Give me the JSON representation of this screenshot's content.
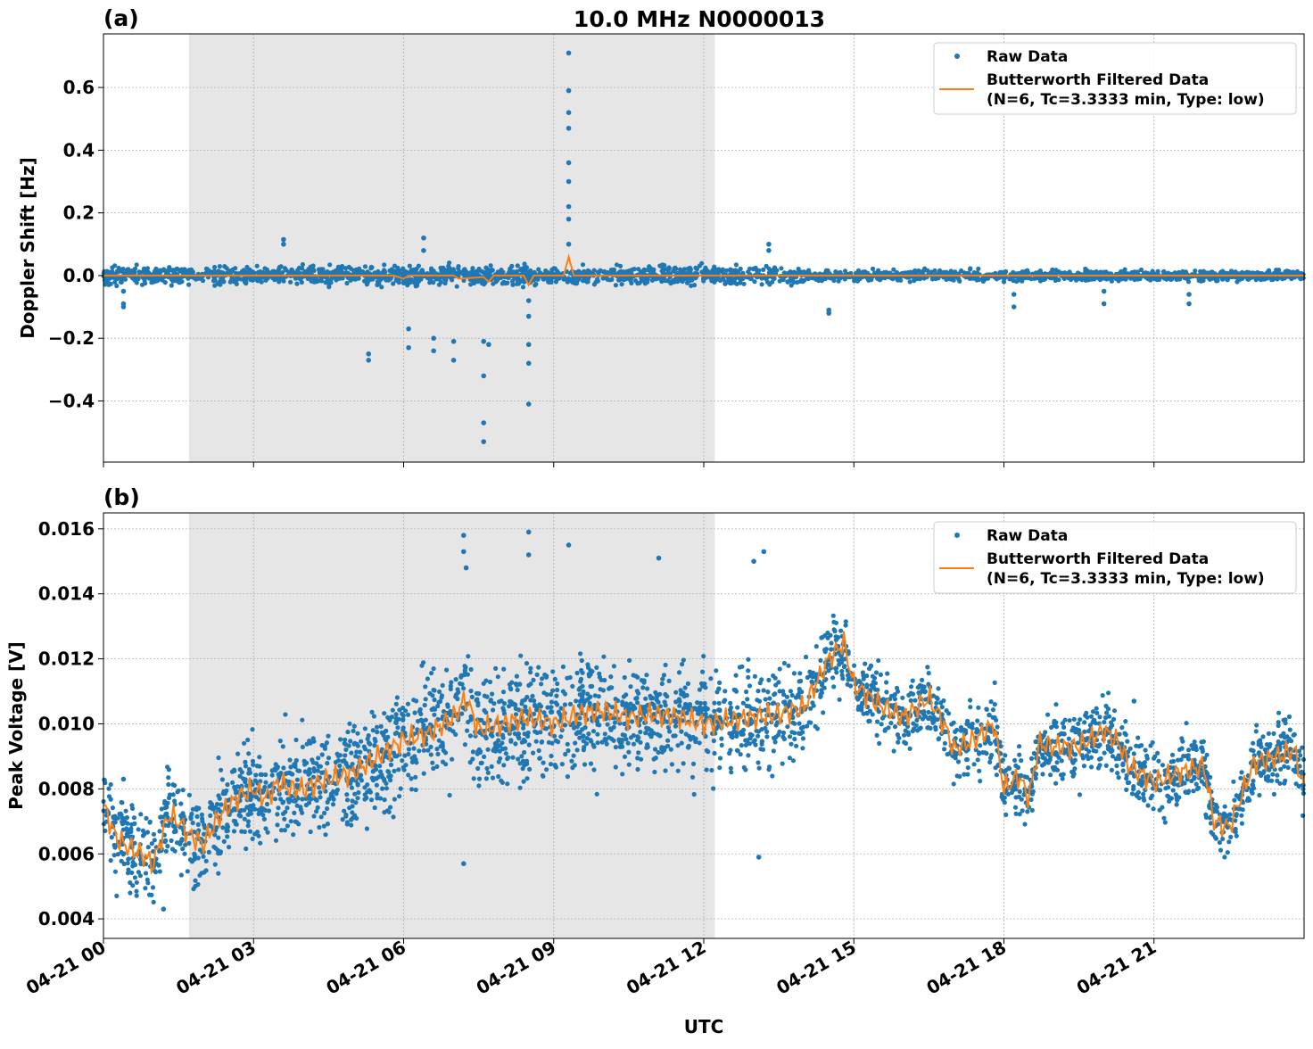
{
  "title": "10.0 MHz N0000013",
  "colors": {
    "raw": "#1f77b4",
    "filtered": "#ff7f0e",
    "shade": "#e6e6e6"
  },
  "chart_data": [
    {
      "type": "scatter",
      "panel_label": "(a)",
      "ylabel": "Doppler Shift [Hz]",
      "xlabel": "",
      "x_unit": "hours since 04-21 00 UTC",
      "xlim": [
        0,
        24
      ],
      "ylim": [
        -0.595,
        0.771
      ],
      "yticks": [
        -0.4,
        -0.2,
        0.0,
        0.2,
        0.4,
        0.6
      ],
      "ytick_labels": [
        "−0.4",
        "−0.2",
        "0.0",
        "0.2",
        "0.4",
        "0.6"
      ],
      "grid": true,
      "shaded_interval_hours": [
        1.71,
        12.22
      ],
      "legend": {
        "placement": "top-right",
        "entries": [
          "Raw Data",
          "Butterworth Filtered Data",
          "(N=6, Tc=3.3333 min, Type: low)"
        ]
      },
      "raw_band": {
        "center": 0.0,
        "segments": [
          {
            "from": 0,
            "to": 14,
            "halfwidth": 0.03
          },
          {
            "from": 14,
            "to": 24,
            "halfwidth": 0.017
          }
        ]
      },
      "raw_outliers": [
        [
          0.4,
          -0.09
        ],
        [
          0.4,
          -0.1
        ],
        [
          0.4,
          -0.05
        ],
        [
          3.6,
          0.1
        ],
        [
          3.6,
          0.115
        ],
        [
          5.3,
          -0.25
        ],
        [
          5.3,
          -0.27
        ],
        [
          6.1,
          -0.17
        ],
        [
          6.1,
          -0.23
        ],
        [
          6.4,
          0.12
        ],
        [
          6.4,
          0.08
        ],
        [
          6.6,
          -0.2
        ],
        [
          6.6,
          -0.24
        ],
        [
          7.0,
          -0.21
        ],
        [
          7.0,
          -0.27
        ],
        [
          7.6,
          -0.32
        ],
        [
          7.6,
          -0.47
        ],
        [
          7.6,
          -0.53
        ],
        [
          7.6,
          -0.21
        ],
        [
          7.7,
          -0.22
        ],
        [
          8.5,
          -0.41
        ],
        [
          8.5,
          -0.28
        ],
        [
          8.5,
          -0.22
        ],
        [
          8.5,
          -0.13
        ],
        [
          8.5,
          -0.08
        ],
        [
          9.3,
          0.71
        ],
        [
          9.3,
          0.59
        ],
        [
          9.3,
          0.52
        ],
        [
          9.3,
          0.47
        ],
        [
          9.3,
          0.36
        ],
        [
          9.3,
          0.3
        ],
        [
          9.3,
          0.22
        ],
        [
          9.3,
          0.18
        ],
        [
          9.3,
          0.1
        ],
        [
          13.3,
          0.1
        ],
        [
          13.3,
          0.08
        ],
        [
          14.5,
          -0.12
        ],
        [
          14.5,
          -0.11
        ],
        [
          18.2,
          -0.1
        ],
        [
          18.2,
          -0.06
        ],
        [
          20.0,
          -0.09
        ],
        [
          20.0,
          -0.05
        ],
        [
          21.7,
          -0.09
        ],
        [
          21.7,
          -0.06
        ]
      ],
      "filtered": {
        "x": [
          0,
          5.8,
          6.0,
          6.1,
          7.0,
          7.1,
          7.6,
          7.7,
          7.8,
          8.4,
          8.5,
          8.6,
          9.2,
          9.3,
          9.4,
          14,
          24
        ],
        "y": [
          0.0,
          0.0,
          -0.01,
          0.0,
          0.0,
          -0.01,
          -0.005,
          -0.02,
          0.0,
          0.0,
          -0.03,
          0.0,
          0.0,
          0.06,
          0.0,
          0.0,
          0.0
        ]
      }
    },
    {
      "type": "scatter",
      "panel_label": "(b)",
      "ylabel": "Peak Voltage [V]",
      "xlabel": "UTC",
      "x_unit": "hours since 04-21 00 UTC",
      "xlim": [
        0,
        24
      ],
      "ylim": [
        0.0034,
        0.01649
      ],
      "yticks": [
        0.004,
        0.006,
        0.008,
        0.01,
        0.012,
        0.014,
        0.016
      ],
      "ytick_labels": [
        "0.004",
        "0.006",
        "0.008",
        "0.010",
        "0.012",
        "0.014",
        "0.016"
      ],
      "xticks": [
        0,
        3,
        6,
        9,
        12,
        15,
        18,
        21
      ],
      "xtick_labels": [
        "04-21 00",
        "04-21 03",
        "04-21 06",
        "04-21 09",
        "04-21 12",
        "04-21 15",
        "04-21 18",
        "04-21 21"
      ],
      "grid": true,
      "shaded_interval_hours": [
        1.71,
        12.22
      ],
      "legend": {
        "placement": "top-right",
        "entries": [
          "Raw Data",
          "Butterworth Filtered Data",
          "(N=6, Tc=3.3333 min, Type: low)"
        ]
      },
      "filtered": {
        "x": [
          0,
          0.25,
          0.5,
          0.75,
          1.0,
          1.3,
          1.5,
          1.7,
          2.0,
          2.25,
          2.5,
          2.75,
          3.0,
          3.25,
          3.5,
          3.75,
          4,
          4.5,
          5,
          5.5,
          6,
          6.5,
          7,
          7.25,
          7.5,
          8,
          8.5,
          9,
          9.5,
          10,
          10.5,
          11,
          11.5,
          12,
          12.5,
          13,
          13.5,
          14,
          14.5,
          14.8,
          15,
          15.5,
          16,
          16.5,
          16.8,
          17,
          17.5,
          17.8,
          18,
          18.3,
          18.5,
          18.7,
          19,
          19.5,
          20,
          20.3,
          20.5,
          21,
          21.5,
          22,
          22.2,
          22.5,
          22.8,
          23,
          23.5,
          23.8,
          24
        ],
        "y": [
          0.0075,
          0.0065,
          0.0062,
          0.006,
          0.0057,
          0.0072,
          0.007,
          0.0066,
          0.0063,
          0.007,
          0.0075,
          0.0078,
          0.008,
          0.0077,
          0.0082,
          0.008,
          0.008,
          0.0083,
          0.0085,
          0.009,
          0.0095,
          0.0097,
          0.0102,
          0.0108,
          0.0098,
          0.01,
          0.0102,
          0.01,
          0.0103,
          0.0104,
          0.0102,
          0.0103,
          0.0102,
          0.01,
          0.0101,
          0.0102,
          0.0103,
          0.0105,
          0.012,
          0.0125,
          0.0112,
          0.0106,
          0.0102,
          0.0108,
          0.01,
          0.0092,
          0.0096,
          0.01,
          0.008,
          0.0084,
          0.0077,
          0.0094,
          0.0093,
          0.0093,
          0.0098,
          0.0094,
          0.0087,
          0.0082,
          0.0085,
          0.0087,
          0.007,
          0.0068,
          0.008,
          0.0088,
          0.009,
          0.0092,
          0.008
        ]
      },
      "raw_spread_halfwidth": [
        [
          0,
          0.0013
        ],
        [
          7,
          0.0018
        ],
        [
          13.5,
          0.0016
        ],
        [
          15,
          0.001
        ],
        [
          24,
          0.001
        ]
      ],
      "raw_outliers": [
        [
          7.2,
          0.0158
        ],
        [
          7.2,
          0.0153
        ],
        [
          7.2,
          0.0057
        ],
        [
          7.25,
          0.0148
        ],
        [
          8.5,
          0.0159
        ],
        [
          8.5,
          0.0152
        ],
        [
          9.3,
          0.0155
        ],
        [
          11.1,
          0.0151
        ],
        [
          13.2,
          0.0153
        ],
        [
          13.1,
          0.0059
        ],
        [
          13.0,
          0.015
        ],
        [
          20.6,
          0.0107
        ],
        [
          0.4,
          0.0083
        ],
        [
          1.2,
          0.0043
        ]
      ]
    }
  ]
}
